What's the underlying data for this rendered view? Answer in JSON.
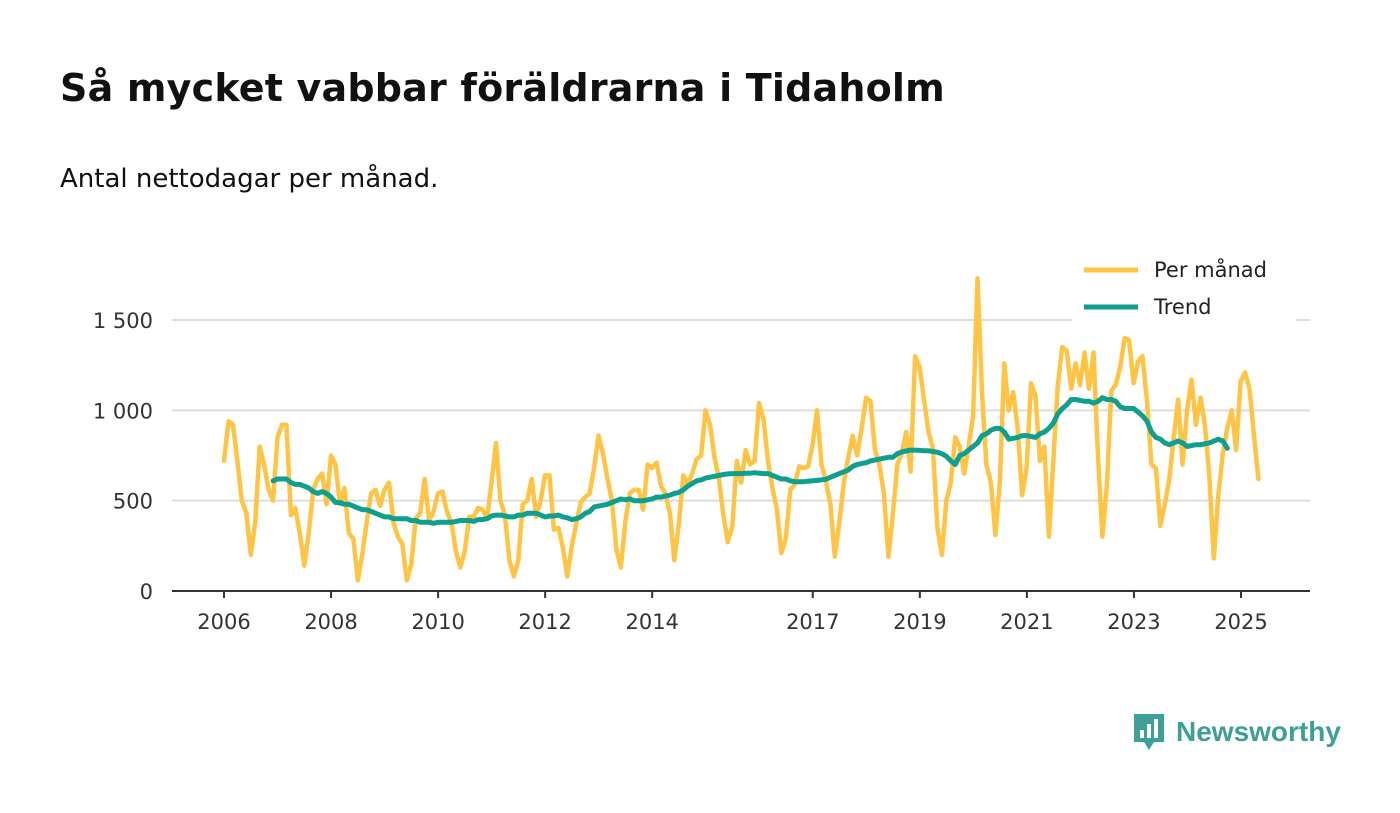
{
  "chart_data": {
    "type": "line",
    "title": "Så mycket vabbar föräldrarna i Tidaholm",
    "subtitle": "Antal nettodagar per månad.",
    "xlabel": "",
    "ylabel": "",
    "xlim": [
      2006,
      2027.3
    ],
    "ylim": [
      0,
      1500
    ],
    "x_ticks": [
      {
        "value": 2006,
        "label": "2006"
      },
      {
        "value": 2008,
        "label": "2008"
      },
      {
        "value": 2010,
        "label": "2010"
      },
      {
        "value": 2012,
        "label": "2012"
      },
      {
        "value": 2014,
        "label": "2014"
      },
      {
        "value": 2017,
        "label": "2017"
      },
      {
        "value": 2019,
        "label": "2019"
      },
      {
        "value": 2021,
        "label": "2021"
      },
      {
        "value": 2023,
        "label": "2023"
      },
      {
        "value": 2025,
        "label": "2025"
      }
    ],
    "y_ticks": [
      {
        "value": 0,
        "label": "0"
      },
      {
        "value": 500,
        "label": "500"
      },
      {
        "value": 1000,
        "label": "1 000"
      },
      {
        "value": 1500,
        "label": "1 500"
      }
    ],
    "grid": true,
    "legend_position": "top-right",
    "series": [
      {
        "name": "Per månad",
        "color": "#ffc445",
        "start": 2006.0,
        "step": 0.0833,
        "values": [
          720,
          940,
          920,
          720,
          500,
          430,
          200,
          380,
          800,
          700,
          560,
          500,
          850,
          920,
          920,
          420,
          460,
          320,
          140,
          320,
          560,
          620,
          650,
          480,
          750,
          700,
          480,
          570,
          320,
          290,
          60,
          200,
          380,
          540,
          560,
          470,
          560,
          600,
          380,
          300,
          260,
          60,
          150,
          400,
          430,
          620,
          390,
          440,
          540,
          550,
          440,
          380,
          220,
          130,
          220,
          410,
          410,
          460,
          450,
          400,
          600,
          820,
          500,
          420,
          170,
          80,
          170,
          480,
          500,
          620,
          410,
          500,
          640,
          640,
          340,
          350,
          240,
          80,
          250,
          370,
          490,
          520,
          540,
          680,
          860,
          760,
          620,
          500,
          230,
          130,
          380,
          540,
          560,
          560,
          450,
          700,
          680,
          710,
          580,
          540,
          430,
          170,
          370,
          640,
          590,
          650,
          730,
          750,
          1000,
          920,
          740,
          620,
          420,
          270,
          360,
          720,
          600,
          780,
          700,
          720,
          1040,
          950,
          720,
          570,
          450,
          210,
          290,
          560,
          590,
          690,
          680,
          690,
          810,
          1000,
          700,
          610,
          480,
          190,
          380,
          600,
          740,
          860,
          750,
          900,
          1070,
          1050,
          780,
          700,
          540,
          190,
          420,
          700,
          760,
          880,
          660,
          1300,
          1240,
          1060,
          880,
          790,
          350,
          200,
          500,
          600,
          850,
          800,
          650,
          800,
          970,
          1730,
          1100,
          700,
          600,
          310,
          600,
          1260,
          1000,
          1100,
          900,
          530,
          680,
          1150,
          1080,
          720,
          800,
          300,
          720,
          1140,
          1350,
          1330,
          1120,
          1260,
          1140,
          1320,
          1120,
          1320,
          760,
          300,
          580,
          1110,
          1140,
          1240,
          1400,
          1390,
          1150,
          1270,
          1300,
          1050,
          700,
          680,
          360,
          480,
          620,
          850,
          1060,
          700,
          1000,
          1170,
          920,
          1070,
          920,
          630,
          180,
          530,
          760,
          900,
          1000,
          780,
          1160,
          1210,
          1120,
          860,
          620
        ]
      },
      {
        "name": "Trend",
        "color": "#0e9f8f",
        "start": 2006.917,
        "step": 0.0833,
        "values": [
          610,
          620,
          620,
          620,
          600,
          590,
          590,
          580,
          570,
          550,
          540,
          550,
          540,
          520,
          490,
          490,
          480,
          480,
          470,
          460,
          450,
          450,
          440,
          430,
          420,
          410,
          410,
          400,
          400,
          400,
          400,
          390,
          390,
          380,
          380,
          380,
          375,
          380,
          380,
          380,
          380,
          385,
          390,
          390,
          390,
          385,
          395,
          395,
          400,
          415,
          420,
          420,
          415,
          410,
          410,
          420,
          420,
          430,
          430,
          430,
          420,
          410,
          415,
          415,
          420,
          410,
          405,
          395,
          400,
          410,
          430,
          440,
          465,
          470,
          475,
          480,
          490,
          500,
          510,
          505,
          510,
          500,
          500,
          500,
          505,
          510,
          520,
          520,
          525,
          530,
          540,
          545,
          560,
          580,
          595,
          610,
          615,
          625,
          630,
          635,
          640,
          645,
          648,
          650,
          650,
          650,
          652,
          652,
          655,
          652,
          650,
          650,
          640,
          630,
          620,
          620,
          610,
          605,
          605,
          605,
          608,
          610,
          612,
          615,
          618,
          630,
          640,
          650,
          660,
          670,
          690,
          700,
          705,
          710,
          720,
          725,
          730,
          735,
          740,
          740,
          760,
          770,
          775,
          780,
          780,
          778,
          776,
          776,
          772,
          768,
          760,
          745,
          720,
          700,
          750,
          760,
          780,
          800,
          820,
          860,
          870,
          890,
          900,
          900,
          880,
          840,
          845,
          850,
          860,
          860,
          855,
          850,
          870,
          880,
          900,
          930,
          980,
          1010,
          1030,
          1060,
          1060,
          1055,
          1050,
          1050,
          1040,
          1050,
          1070,
          1060,
          1060,
          1050,
          1020,
          1010,
          1010,
          1010,
          990,
          970,
          940,
          880,
          850,
          840,
          820,
          810,
          820,
          830,
          820,
          800,
          805,
          810,
          810,
          815,
          820,
          830,
          840,
          830,
          790
        ]
      }
    ]
  },
  "brand": {
    "name": "Newsworthy"
  }
}
